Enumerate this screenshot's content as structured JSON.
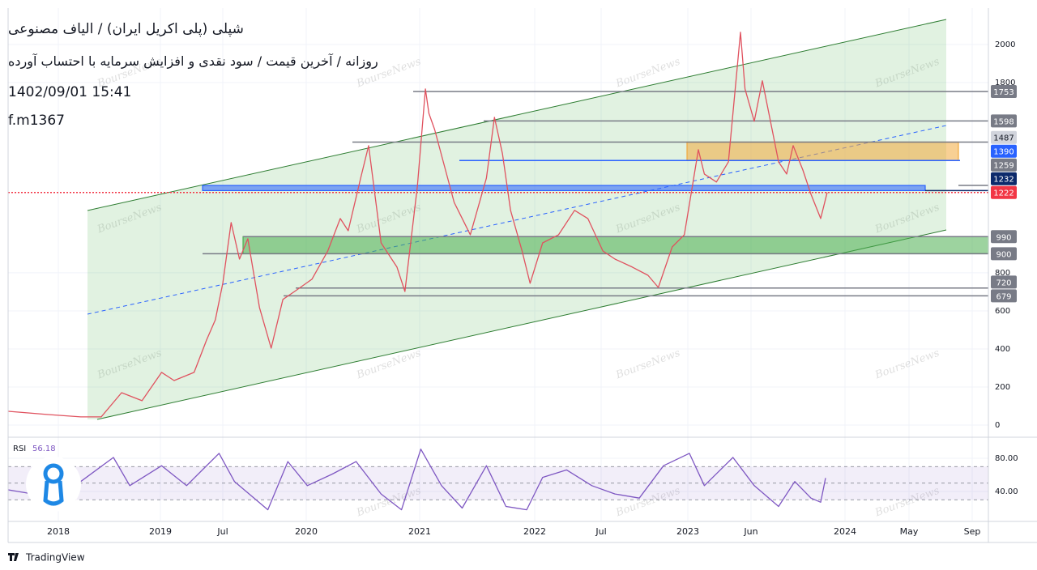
{
  "header": {
    "title": "شپلی (پلی اکریل ایران) / الیاف مصنوعی",
    "subtitle": "روزانه / آخرین قیمت / سود نقدی و افزایش سرمایه با احتساب آورده",
    "datetime": "1402/09/01 15:41",
    "code": "f.m1367"
  },
  "watermark": "BourseNews",
  "footer": "TradingView",
  "chart_data": [
    {
      "type": "line",
      "x": [
        2017.51,
        2017.9,
        2018.22,
        2018.42,
        2018.62,
        2018.82,
        2019.01,
        2019.11,
        2019.27,
        2019.37,
        2019.44,
        2019.5,
        2019.55,
        2019.6,
        2019.65,
        2019.72,
        2019.79,
        2019.86,
        2019.93,
        2020.05,
        2020.19,
        2020.3,
        2020.37,
        2020.48,
        2020.55,
        2020.66,
        2020.8,
        2020.87,
        2020.98,
        2021.05,
        2021.08,
        2021.13,
        2021.3,
        2021.44,
        2021.58,
        2021.65,
        2021.72,
        2021.79,
        2021.89,
        2021.96,
        2022.06,
        2022.18,
        2022.3,
        2022.4,
        2022.51,
        2022.58,
        2022.68,
        2022.77,
        2022.83,
        2022.91,
        2022.98,
        2023.03,
        2023.07,
        2023.11,
        2023.19,
        2023.27,
        2023.33,
        2023.35,
        2023.38,
        2023.44,
        2023.49,
        2023.54,
        2023.59,
        2023.64,
        2023.68,
        2023.74,
        2023.79,
        2023.85,
        2023.89
      ],
      "series": [
        {
          "color": "#e0525f",
          "values": [
            72,
            55,
            43,
            43,
            170,
            128,
            277,
            234,
            277,
            447,
            553,
            745,
            1064,
            872,
            979,
            617,
            404,
            660,
            702,
            766,
            915,
            1085,
            1021,
            1298,
            1468,
            957,
            830,
            702,
            1255,
            1766,
            1638,
            1553,
            1170,
            1000,
            1298,
            1617,
            1426,
            1128,
            915,
            745,
            957,
            1000,
            1128,
            1085,
            915,
            872,
            830,
            787,
            723,
            936,
            1000,
            1255,
            1447,
            1319,
            1277,
            1383,
            1894,
            2064,
            1766,
            1596,
            1809,
            1596,
            1383,
            1319,
            1468,
            1340,
            1213,
            1085,
            1222
          ]
        }
      ],
      "ylim": [
        -64,
        2191
      ],
      "yticks": [
        0,
        200,
        400,
        600,
        800,
        1800,
        2000
      ],
      "levels": [
        {
          "value": 1753,
          "color": "#787b86"
        },
        {
          "value": 1598,
          "color": "#787b86"
        },
        {
          "value": 1487,
          "color": "#d1d4dc"
        },
        {
          "value": 1390,
          "color": "#2962ff"
        },
        {
          "value": 1259,
          "color": "#787b86"
        },
        {
          "value": 1232,
          "color": "#0d2a6b"
        },
        {
          "value": 1222,
          "color": "#f23645"
        },
        {
          "value": 990,
          "color": "#787b86"
        },
        {
          "value": 900,
          "color": "#787b86"
        },
        {
          "value": 720,
          "color": "#787b86"
        },
        {
          "value": 679,
          "color": "#787b86"
        }
      ],
      "zones": [
        {
          "from": 1390,
          "to": 1487,
          "color": "#f2aa3c"
        },
        {
          "from": 1232,
          "to": 1259,
          "color": "#2962ff"
        },
        {
          "from": 900,
          "to": 990,
          "color": "#4caf50"
        }
      ],
      "grid": true
    },
    {
      "type": "line",
      "title": "RSI",
      "x": [
        2017.51,
        2017.75,
        2018.22,
        2018.54,
        2018.7,
        2019.01,
        2019.21,
        2019.47,
        2019.57,
        2019.77,
        2019.89,
        2020.01,
        2020.23,
        2020.44,
        2020.66,
        2020.84,
        2021.01,
        2021.19,
        2021.37,
        2021.58,
        2021.75,
        2021.93,
        2022.06,
        2022.24,
        2022.43,
        2022.58,
        2022.72,
        2022.86,
        2023.01,
        2023.11,
        2023.3,
        2023.44,
        2023.59,
        2023.69,
        2023.79,
        2023.85,
        2023.88
      ],
      "series": [
        {
          "color": "#7e57c2",
          "values": [
            42,
            37,
            52,
            81,
            47,
            71,
            47,
            86,
            52,
            18,
            76,
            47,
            61,
            76,
            37,
            18,
            91,
            47,
            20,
            71,
            22,
            18,
            57,
            66,
            47,
            37,
            32,
            71,
            86,
            47,
            81,
            47,
            22,
            52,
            32,
            27,
            56.18
          ]
        }
      ],
      "ylim": [
        4.9,
        100.5
      ],
      "yticks": [
        {
          "value": 80,
          "label": "80.00"
        },
        {
          "value": 40,
          "label": "40.00"
        }
      ],
      "band": [
        30,
        70
      ],
      "midline": 50,
      "xticks": [
        {
          "value": 2018,
          "label": "2018"
        },
        {
          "value": 2019,
          "label": "2019"
        },
        {
          "value": 2019.5,
          "label": "Jul"
        },
        {
          "value": 2020,
          "label": "2020"
        },
        {
          "value": 2021,
          "label": "2021"
        },
        {
          "value": 2022,
          "label": "2022"
        },
        {
          "value": 2022.5,
          "label": "Jul"
        },
        {
          "value": 2023,
          "label": "2023"
        },
        {
          "value": 2023.42,
          "label": "Jun"
        },
        {
          "value": 2024,
          "label": "2024"
        },
        {
          "value": 2024.33,
          "label": "May"
        },
        {
          "value": 2024.67,
          "label": "Sep"
        }
      ],
      "grid": true
    }
  ]
}
